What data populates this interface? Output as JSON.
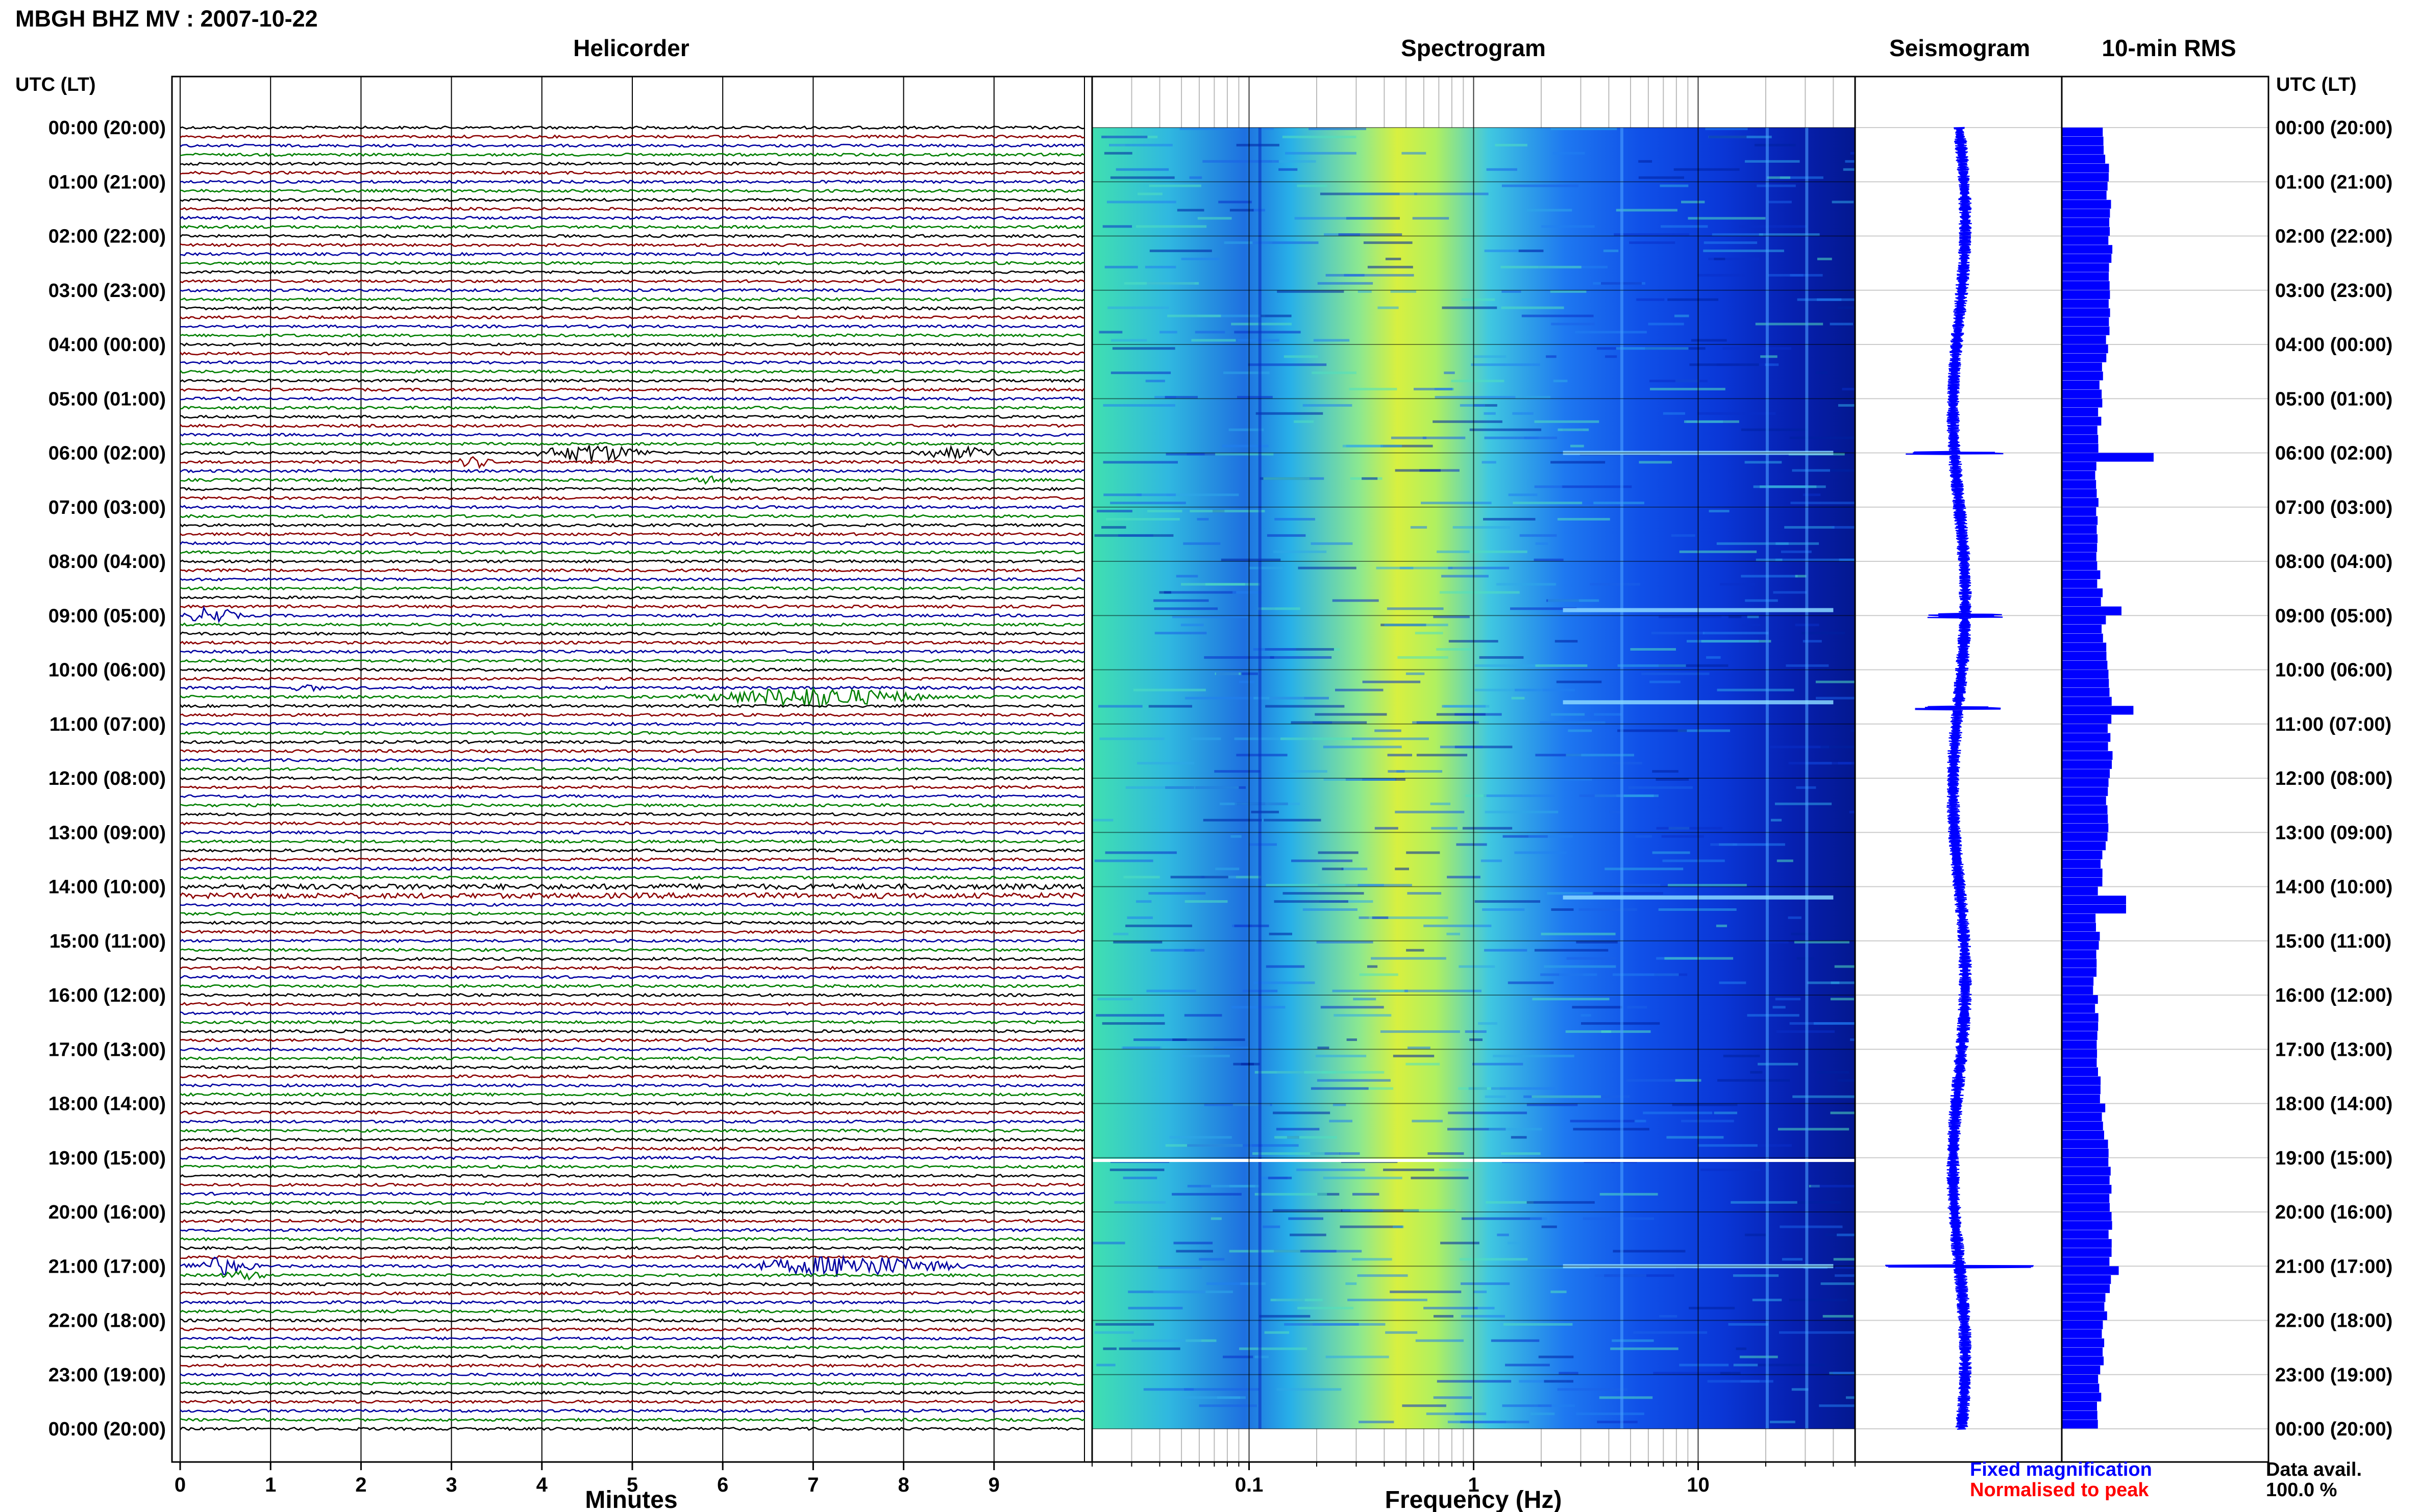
{
  "station_title": "MBGH BHZ MV : 2007-10-22",
  "panels": {
    "helicorder": "Helicorder",
    "spectrogram": "Spectrogram",
    "seismogram": "Seismogram",
    "rms": "10-min RMS"
  },
  "utc_header": "UTC (LT)",
  "time_labels": [
    "00:00 (20:00)",
    "01:00 (21:00)",
    "02:00 (22:00)",
    "03:00 (23:00)",
    "04:00 (00:00)",
    "05:00 (01:00)",
    "06:00 (02:00)",
    "07:00 (03:00)",
    "08:00 (04:00)",
    "09:00 (05:00)",
    "10:00 (06:00)",
    "11:00 (07:00)",
    "12:00 (08:00)",
    "13:00 (09:00)",
    "14:00 (10:00)",
    "15:00 (11:00)",
    "16:00 (12:00)",
    "17:00 (13:00)",
    "18:00 (14:00)",
    "19:00 (15:00)",
    "20:00 (16:00)",
    "21:00 (17:00)",
    "22:00 (18:00)",
    "23:00 (19:00)",
    "00:00 (20:00)"
  ],
  "minutes_ticks": [
    "0",
    "1",
    "2",
    "3",
    "4",
    "5",
    "6",
    "7",
    "8",
    "9"
  ],
  "minutes_label": "Minutes",
  "freq_ticks": [
    "0.1",
    "1",
    "10"
  ],
  "freq_label": "Frequency (Hz)",
  "legend": {
    "fixed": "Fixed magnification",
    "normalised": "Normalised to peak",
    "fixed_color": "#0000ff",
    "normalised_color": "#ff0000"
  },
  "data_avail": {
    "label": "Data avail.",
    "value": "100.0 %"
  },
  "colors": {
    "trace_cycle": [
      "#000000",
      "#8b0000",
      "#0000a0",
      "#007f00"
    ],
    "spectrum_low": "#00008b",
    "spectrum_mid": "#ffff00",
    "rms_bar": "#0000ff",
    "seismogram": "#0000ff"
  },
  "chart_data": [
    {
      "type": "line",
      "name": "helicorder",
      "xlabel": "Minutes",
      "xlim": [
        0,
        10
      ],
      "rows_per_hour": 6,
      "hours": 24,
      "events": [
        {
          "hour": 6.0,
          "minute_start": 3.8,
          "minute_end": 5.3,
          "amp": 0.8
        },
        {
          "hour": 6.0,
          "minute_start": 8.0,
          "minute_end": 9.2,
          "amp": 0.5
        },
        {
          "hour": 6.17,
          "minute_start": 3.0,
          "minute_end": 3.5,
          "amp": 0.5
        },
        {
          "hour": 6.5,
          "minute_start": 5.6,
          "minute_end": 6.2,
          "amp": 0.3
        },
        {
          "hour": 9.0,
          "minute_start": 0.0,
          "minute_end": 0.7,
          "amp": 0.8
        },
        {
          "hour": 10.33,
          "minute_start": 1.2,
          "minute_end": 1.6,
          "amp": 0.3
        },
        {
          "hour": 10.5,
          "minute_start": 5.5,
          "minute_end": 8.5,
          "amp": 0.9
        },
        {
          "hour": 21.0,
          "minute_start": 0.0,
          "minute_end": 0.9,
          "amp": 0.8
        },
        {
          "hour": 21.0,
          "minute_start": 6.0,
          "minute_end": 8.8,
          "amp": 1.0
        },
        {
          "hour": 21.17,
          "minute_start": 0.4,
          "minute_end": 1.0,
          "amp": 0.4
        }
      ]
    },
    {
      "type": "heatmap",
      "name": "spectrogram",
      "xlabel": "Frequency (Hz)",
      "x_scale": "log",
      "xlim": [
        0.02,
        50
      ],
      "hours": 24,
      "peak_frequency_hz": 0.3,
      "gap_hour": 19.05,
      "events_hours": [
        6.0,
        8.9,
        10.6,
        14.2,
        21.0
      ]
    },
    {
      "type": "line",
      "name": "seismogram",
      "hours": 24,
      "spikes": [
        {
          "hour": 6.0,
          "amp": 0.55
        },
        {
          "hour": 9.0,
          "amp": 0.4
        },
        {
          "hour": 10.7,
          "amp": 0.45
        },
        {
          "hour": 21.0,
          "amp": 0.95
        }
      ]
    },
    {
      "type": "bar",
      "name": "10-min RMS",
      "interval_minutes": 10,
      "peaks": [
        {
          "hour": 6.0,
          "relative": 1.0
        },
        {
          "hour": 10.6,
          "relative": 0.78
        },
        {
          "hour": 8.9,
          "relative": 0.65
        },
        {
          "hour": 14.25,
          "relative": 0.7
        },
        {
          "hour": 21.0,
          "relative": 0.62
        }
      ]
    }
  ]
}
